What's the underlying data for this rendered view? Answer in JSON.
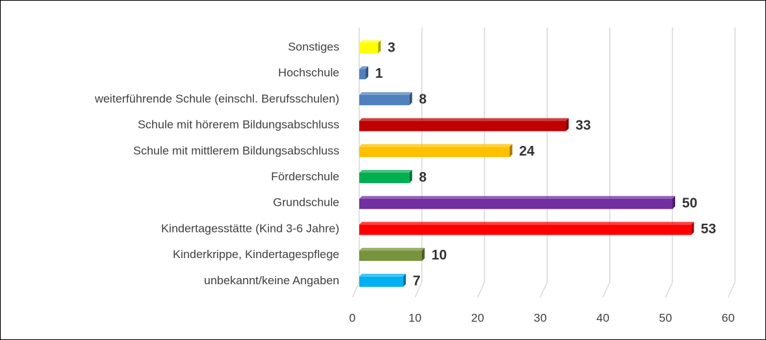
{
  "chart_data": {
    "type": "bar",
    "orientation": "horizontal",
    "categories": [
      "Sonstiges",
      "Hochschule",
      "weiterführende Schule (einschl. Berufsschulen)",
      "Schule mit hörerem Bildungsabschluss",
      "Schule mit mittlerem Bildungsabschluss",
      "Förderschule",
      "Grundschule",
      "Kindertagesstätte (Kind 3-6 Jahre)",
      "Kinderkrippe, Kindertagespflege",
      "unbekannt/keine Angaben"
    ],
    "values": [
      3,
      1,
      8,
      33,
      24,
      8,
      50,
      53,
      10,
      7
    ],
    "colors": [
      "#ffff00",
      "#4f81bd",
      "#4f81bd",
      "#c00000",
      "#ffc000",
      "#00b050",
      "#7030a0",
      "#ff0000",
      "#77933c",
      "#00b0f0"
    ],
    "xlim": [
      0,
      60
    ],
    "xticks": [
      0,
      10,
      20,
      30,
      40,
      50,
      60
    ],
    "grid": true
  }
}
